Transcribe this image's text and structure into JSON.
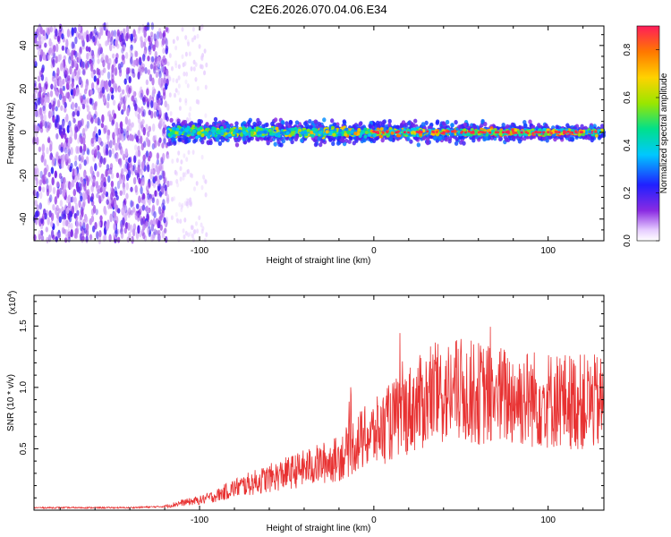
{
  "title": "C2E6.2026.070.04.06.E34",
  "chart_data": [
    {
      "type": "heatmap",
      "name": "spectrogram",
      "xlabel": "Height of straight line (km)",
      "ylabel": "Frequency (Hz)",
      "xlim": [
        -195,
        132
      ],
      "ylim": [
        -50,
        49
      ],
      "xticks": [
        -100,
        0,
        100
      ],
      "yticks": [
        -40,
        -20,
        0,
        20,
        40
      ],
      "colorbar": {
        "label": "Normalized spectral amplitude",
        "range": [
          0.0,
          0.9
        ],
        "ticks": [
          0.0,
          0.2,
          0.4,
          0.6,
          0.8
        ],
        "tick_labels": [
          "0.0",
          "0.2",
          "0.4",
          "0.6",
          "0.8"
        ]
      },
      "regions": [
        {
          "x_range": [
            -195,
            -118
          ],
          "freq_range": [
            -50,
            49
          ],
          "amplitude": 0.12,
          "description": "broadband noise"
        },
        {
          "x_range": [
            -118,
            132
          ],
          "freq_range": [
            -6,
            6
          ],
          "amplitude_peak": 0.9,
          "description": "narrow band centered near 0 Hz"
        }
      ]
    },
    {
      "type": "line",
      "name": "snr",
      "xlabel": "Height of straight line (km)",
      "ylabel": "SNR (10 * v/v)",
      "y_multiplier": "(x10^4)",
      "y_multiplier_base": "(x10",
      "y_multiplier_exp": "4",
      "y_multiplier_close": ")",
      "xlim": [
        -195,
        132
      ],
      "ylim": [
        0,
        1.75
      ],
      "xticks": [
        -100,
        0,
        100
      ],
      "yticks": [
        0.5,
        1.0,
        1.5
      ],
      "ytick_labels": [
        "0.5",
        "1.0",
        "1.5"
      ],
      "color": "#e83232",
      "series": [
        {
          "name": "SNR",
          "x": [
            -195,
            -180,
            -160,
            -140,
            -120,
            -110,
            -100,
            -90,
            -80,
            -70,
            -60,
            -50,
            -40,
            -30,
            -20,
            -15,
            -10,
            0,
            10,
            20,
            30,
            40,
            50,
            60,
            70,
            80,
            90,
            100,
            110,
            120,
            132
          ],
          "y": [
            0.02,
            0.02,
            0.02,
            0.02,
            0.03,
            0.06,
            0.08,
            0.12,
            0.18,
            0.22,
            0.26,
            0.3,
            0.34,
            0.38,
            0.42,
            0.48,
            0.55,
            0.62,
            0.72,
            0.82,
            0.9,
            0.95,
            0.97,
            0.95,
            0.93,
            0.92,
            0.91,
            0.9,
            0.89,
            0.88,
            0.87
          ]
        }
      ]
    }
  ]
}
